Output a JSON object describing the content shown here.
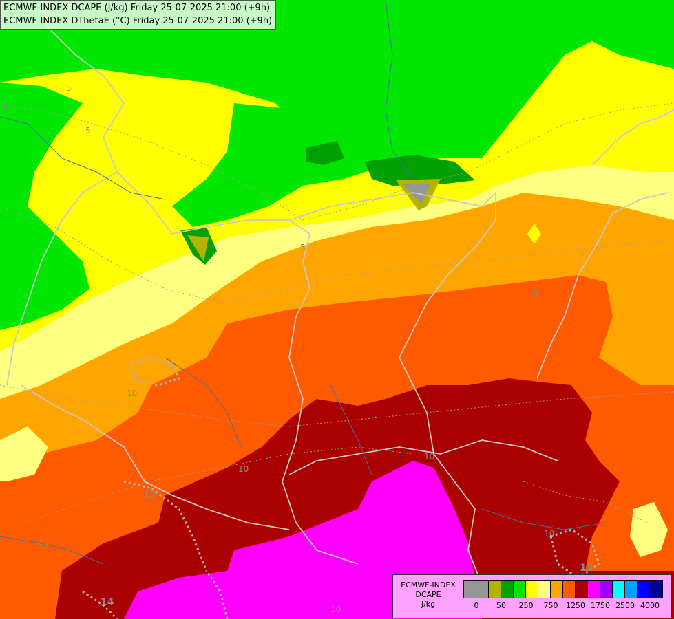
{
  "header": {
    "line1": "ECMWF-INDEX DCAPE (J/kg) Friday 25-07-2025 21:00 (+9h)",
    "line2": "ECMWF-INDEX DThetaE (°C) Friday 25-07-2025 21:00 (+9h)"
  },
  "legend": {
    "title_lines": [
      "ECMWF-INDEX",
      "DCAPE",
      "J/kg"
    ],
    "swatches": [
      "#969696",
      "#969696",
      "#b4b400",
      "#00a000",
      "#00e600",
      "#ffff00",
      "#ffff80",
      "#ffa500",
      "#ff5a00",
      "#aa0000",
      "#ff00ff",
      "#a000ff",
      "#00ffff",
      "#00a0ff",
      "#0000ff",
      "#000096"
    ],
    "ticks": [
      {
        "label": "0",
        "pos": 1
      },
      {
        "label": "50",
        "pos": 3
      },
      {
        "label": "250",
        "pos": 5
      },
      {
        "label": "750",
        "pos": 7
      },
      {
        "label": "1250",
        "pos": 9
      },
      {
        "label": "1750",
        "pos": 11
      },
      {
        "label": "2500",
        "pos": 13
      },
      {
        "label": "4000",
        "pos": 15
      }
    ]
  },
  "contour_labels": [
    "5",
    "5",
    "5",
    "5",
    "6",
    "10",
    "10",
    "10",
    "10",
    "12",
    "12",
    "14",
    "10",
    "10"
  ],
  "colors": {
    "green": "#00e600",
    "darkgreen": "#00a000",
    "olive": "#b4b400",
    "grey": "#969696",
    "yellow": "#ffff00",
    "lightyellow": "#ffff80",
    "orange": "#ffa500",
    "darkorange": "#ff5a00",
    "darkred": "#aa0000",
    "magenta": "#ff00ff"
  }
}
